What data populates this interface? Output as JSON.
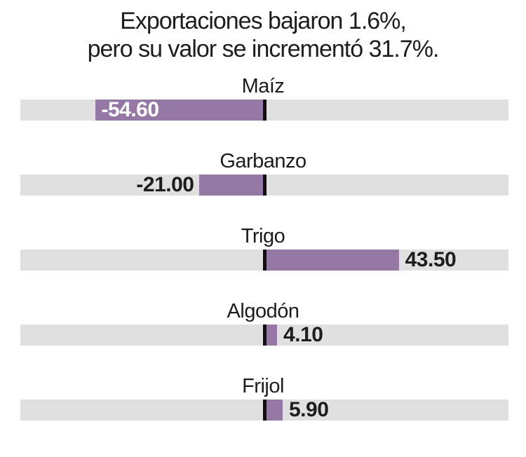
{
  "title": {
    "line1": "Exportaciones bajaron 1.6%,",
    "line2": "pero su valor se incrementó 31.7%."
  },
  "chart_data": {
    "type": "bar",
    "orientation": "horizontal",
    "title": "Exportaciones bajaron 1.6%, pero su valor se incrementó 31.7%.",
    "categories": [
      "Maíz",
      "Garbanzo",
      "Trigo",
      "Algodón",
      "Frijol"
    ],
    "values": [
      -54.6,
      -21.0,
      43.5,
      4.1,
      5.9
    ],
    "xlim": [
      -79,
      79
    ],
    "grid": false,
    "legend": "none",
    "rows": [
      {
        "label": "Maíz",
        "value": -54.6,
        "value_label": "-54.60",
        "value_label_position": "inside"
      },
      {
        "label": "Garbanzo",
        "value": -21.0,
        "value_label": "-21.00",
        "value_label_position": "outside"
      },
      {
        "label": "Trigo",
        "value": 43.5,
        "value_label": "43.50",
        "value_label_position": "outside"
      },
      {
        "label": "Algodón",
        "value": 4.1,
        "value_label": "4.10",
        "value_label_position": "outside"
      },
      {
        "label": "Frijol",
        "value": 5.9,
        "value_label": "5.90",
        "value_label_position": "outside"
      }
    ],
    "colors": {
      "bar": "#9678a5",
      "track": "#e0e0e0",
      "tick": "#111111",
      "value_inside": "#ffffff",
      "value_outside": "#1d1d1b",
      "text": "#1d1d1b",
      "background": "#ffffff"
    }
  }
}
